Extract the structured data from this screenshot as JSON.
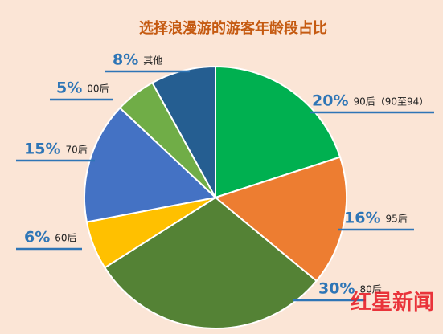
{
  "chart_data": {
    "type": "pie",
    "title": "选择浪漫游的游客年龄段占比",
    "categories": [
      "90后（90至94）",
      "95后",
      "80后",
      "60后",
      "70后",
      "00后",
      "其他"
    ],
    "values": [
      20,
      16,
      30,
      6,
      15,
      5,
      8
    ],
    "value_labels": [
      "20%",
      "16%",
      "30%",
      "6%",
      "15%",
      "5%",
      "8%"
    ],
    "colors": [
      "#00b050",
      "#ed7d31",
      "#548235",
      "#ffc000",
      "#4472c4",
      "#70ad47",
      "#255e91"
    ],
    "watermark": "红星新闻"
  }
}
